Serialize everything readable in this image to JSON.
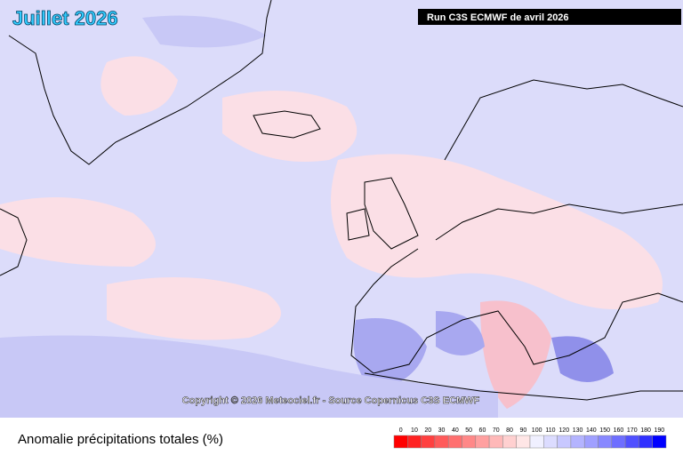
{
  "header": {
    "title": "Juillet 2026",
    "run": "Run C3S ECMWF de avril 2026"
  },
  "copyright": "Copyright © 2026 Meteociel.fr - Source Copernicus C3S ECMWF",
  "legend": {
    "title": "Anomalie précipitations totales (%)",
    "ticks": [
      0,
      10,
      20,
      30,
      40,
      50,
      60,
      70,
      80,
      90,
      100,
      110,
      120,
      130,
      140,
      150,
      160,
      170,
      180,
      190
    ],
    "colors": [
      "#ff0000",
      "#ff2222",
      "#ff4040",
      "#ff5a5a",
      "#ff7070",
      "#ff8888",
      "#ffa0a0",
      "#ffb8b8",
      "#ffd0d0",
      "#ffe6e6",
      "#f0f0ff",
      "#dcdcff",
      "#c8c8ff",
      "#b4b4ff",
      "#a0a0ff",
      "#8888ff",
      "#6e6eff",
      "#5050ff",
      "#3030ff",
      "#0000ff"
    ]
  }
}
